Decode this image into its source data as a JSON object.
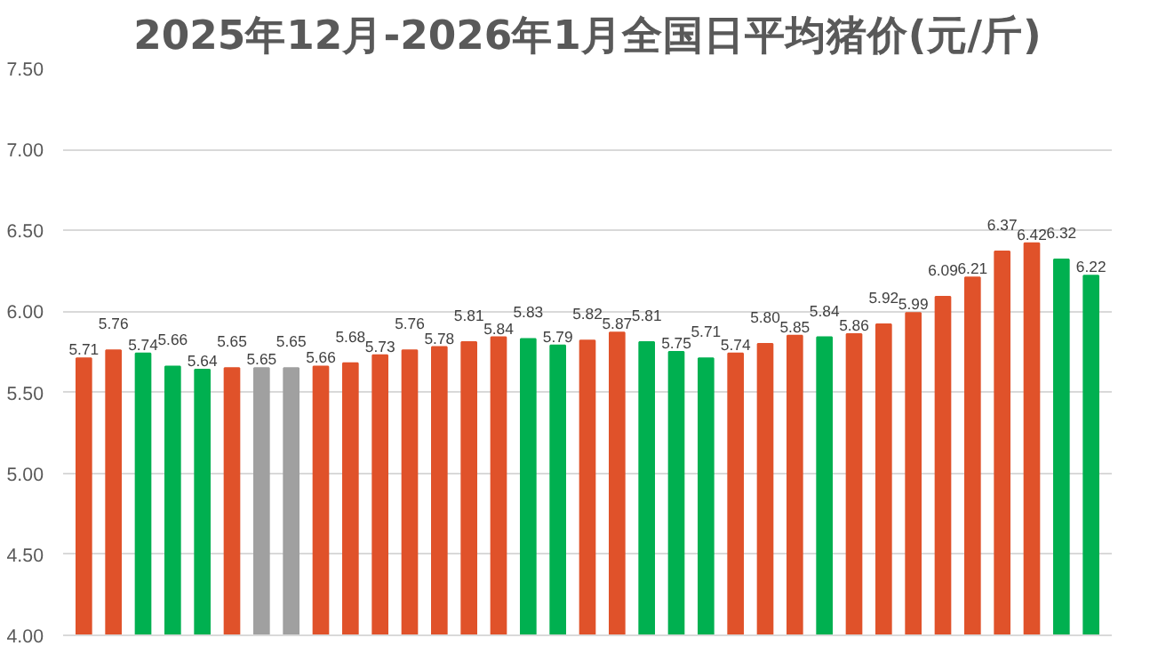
{
  "chart_data": {
    "type": "bar",
    "title": "2025年12月-2026年1月全国日平均猪价(元/斤)",
    "categories": [
      null,
      null,
      null,
      null,
      null,
      null,
      null,
      null,
      null,
      null,
      null,
      null,
      null,
      null,
      null,
      null,
      null,
      null,
      null,
      null,
      null,
      null,
      null,
      null,
      null,
      null,
      null,
      null,
      null,
      null,
      null,
      null,
      null,
      null,
      null
    ],
    "values": [
      5.71,
      5.76,
      5.74,
      5.66,
      5.64,
      5.65,
      5.65,
      5.65,
      5.66,
      5.68,
      5.73,
      5.76,
      5.78,
      5.81,
      5.84,
      5.83,
      5.79,
      5.82,
      5.87,
      5.81,
      5.75,
      5.71,
      5.74,
      5.8,
      5.85,
      5.84,
      5.86,
      5.92,
      5.99,
      6.09,
      6.21,
      6.37,
      6.42,
      6.32,
      6.22
    ],
    "value_labels": [
      "5.71",
      "5.76",
      "5.74",
      "5.66",
      "5.64",
      "5.65",
      "5.65",
      "5.65",
      "5.66",
      "5.68",
      "5.73",
      "5.76",
      "5.78",
      "5.81",
      "5.84",
      "5.83",
      "5.79",
      "5.82",
      "5.87",
      "5.81",
      "5.75",
      "5.71",
      "5.74",
      "5.80",
      "5.85",
      "5.84",
      "5.86",
      "5.92",
      "5.99",
      "6.09",
      "6.21",
      "6.37",
      "6.42",
      "6.32",
      "6.22"
    ],
    "colors": [
      "#e0522a",
      "#e0522a",
      "#00b050",
      "#00b050",
      "#00b050",
      "#e0522a",
      "#a0a0a0",
      "#a0a0a0",
      "#e0522a",
      "#e0522a",
      "#e0522a",
      "#e0522a",
      "#e0522a",
      "#e0522a",
      "#e0522a",
      "#00b050",
      "#00b050",
      "#e0522a",
      "#e0522a",
      "#00b050",
      "#00b050",
      "#00b050",
      "#e0522a",
      "#e0522a",
      "#e0522a",
      "#00b050",
      "#e0522a",
      "#e0522a",
      "#e0522a",
      "#e0522a",
      "#e0522a",
      "#e0522a",
      "#e0522a",
      "#00b050",
      "#00b050"
    ],
    "ylim": [
      4.0,
      7.5
    ],
    "yticks": [
      {
        "value": 4.0,
        "label": "4.00"
      },
      {
        "value": 4.5,
        "label": "4.50"
      },
      {
        "value": 5.0,
        "label": "5.00"
      },
      {
        "value": 5.5,
        "label": "5.50"
      },
      {
        "value": 6.0,
        "label": "6.00"
      },
      {
        "value": 6.5,
        "label": "6.50"
      },
      {
        "value": 7.0,
        "label": "7.00"
      },
      {
        "value": 7.5,
        "label": "7.50"
      }
    ],
    "grid": "y",
    "tick_labels": "y"
  }
}
